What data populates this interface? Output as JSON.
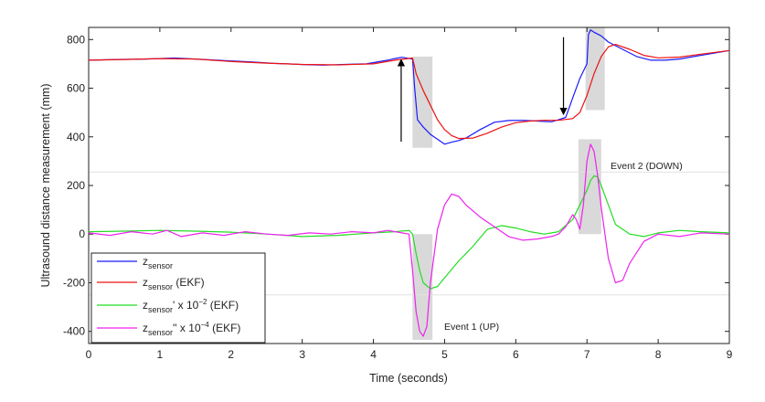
{
  "chart_data": {
    "type": "line",
    "xlabel": "Time (seconds)",
    "ylabel": "Ultrasound distance measurement (mm)",
    "xlim": [
      0,
      9
    ],
    "ylim": [
      -450,
      850
    ],
    "x_ticks": [
      "0",
      "1",
      "2",
      "3",
      "4",
      "5",
      "6",
      "7",
      "8",
      "9"
    ],
    "y_ticks": [
      "-400",
      "-200",
      "0",
      "200",
      "400",
      "600",
      "800"
    ],
    "grid": false,
    "legend_position": "bottom-left",
    "legend": [
      {
        "main": "z",
        "sub": "sensor",
        "tail": "",
        "sup": "",
        "after": ""
      },
      {
        "main": "z",
        "sub": "sensor",
        "tail": " (EKF)",
        "sup": "",
        "after": ""
      },
      {
        "main": "z",
        "sub": "sensor",
        "tail": "' x 10",
        "sup": "−2",
        "after": " (EKF)"
      },
      {
        "main": "z",
        "sub": "sensor",
        "tail": "'' x 10",
        "sup": "−4",
        "after": " (EKF)"
      }
    ],
    "series": [
      {
        "color": "#1a1aff",
        "x": [
          0,
          0.4,
          0.8,
          1.0,
          1.2,
          1.5,
          1.8,
          2.0,
          2.3,
          2.6,
          2.8,
          3.0,
          3.3,
          3.6,
          3.9,
          4.2,
          4.3,
          4.4,
          4.55,
          4.58,
          4.62,
          4.7,
          4.8,
          4.9,
          5.0,
          5.1,
          5.2,
          5.3,
          5.5,
          5.7,
          5.9,
          6.1,
          6.3,
          6.5,
          6.6,
          6.7,
          6.75,
          6.8,
          6.9,
          7.0,
          7.02,
          7.05,
          7.1,
          7.2,
          7.3,
          7.5,
          7.7,
          7.9,
          8.1,
          8.3,
          8.5,
          8.7,
          9.0
        ],
        "y": [
          715,
          718,
          720,
          722,
          724,
          720,
          715,
          712,
          708,
          702,
          700,
          697,
          695,
          698,
          700,
          715,
          722,
          727,
          720,
          600,
          470,
          440,
          410,
          390,
          370,
          378,
          385,
          395,
          430,
          460,
          467,
          468,
          465,
          462,
          470,
          480,
          520,
          560,
          640,
          700,
          820,
          840,
          830,
          815,
          790,
          760,
          730,
          715,
          715,
          720,
          730,
          740,
          755
        ]
      },
      {
        "color": "#ee1111",
        "x": [
          0,
          0.5,
          1.0,
          1.5,
          2.0,
          2.5,
          3.0,
          3.5,
          4.0,
          4.3,
          4.55,
          4.6,
          4.7,
          4.8,
          4.9,
          5.0,
          5.1,
          5.2,
          5.4,
          5.6,
          5.8,
          6.0,
          6.2,
          6.4,
          6.6,
          6.8,
          6.9,
          7.0,
          7.1,
          7.2,
          7.3,
          7.4,
          7.6,
          7.8,
          8.0,
          8.3,
          8.6,
          9.0
        ],
        "y": [
          715,
          718,
          722,
          720,
          710,
          703,
          698,
          696,
          700,
          715,
          724,
          660,
          590,
          530,
          470,
          430,
          405,
          393,
          395,
          415,
          440,
          458,
          465,
          468,
          468,
          475,
          500,
          570,
          660,
          730,
          770,
          780,
          760,
          735,
          725,
          728,
          740,
          755
        ]
      },
      {
        "color": "#22dd22",
        "x": [
          0,
          0.5,
          1.0,
          1.5,
          2.0,
          2.5,
          3.0,
          3.5,
          4.0,
          4.3,
          4.5,
          4.55,
          4.6,
          4.65,
          4.7,
          4.8,
          4.9,
          5.0,
          5.2,
          5.4,
          5.6,
          5.8,
          6.0,
          6.2,
          6.4,
          6.6,
          6.8,
          6.9,
          7.0,
          7.05,
          7.1,
          7.15,
          7.2,
          7.3,
          7.4,
          7.6,
          7.8,
          8.0,
          8.3,
          8.6,
          9.0
        ],
        "y": [
          10,
          12,
          15,
          12,
          8,
          0,
          -10,
          -5,
          5,
          10,
          15,
          0,
          -80,
          -150,
          -200,
          -225,
          -215,
          -180,
          -110,
          -50,
          20,
          35,
          25,
          10,
          0,
          10,
          60,
          120,
          180,
          220,
          240,
          235,
          200,
          120,
          40,
          0,
          -10,
          5,
          15,
          10,
          5
        ]
      },
      {
        "color": "#ee22ee",
        "x": [
          0,
          0.3,
          0.6,
          0.9,
          1.1,
          1.3,
          1.6,
          1.9,
          2.2,
          2.5,
          2.8,
          3.1,
          3.4,
          3.7,
          4.0,
          4.2,
          4.4,
          4.5,
          4.55,
          4.6,
          4.65,
          4.7,
          4.75,
          4.8,
          4.9,
          5.0,
          5.1,
          5.2,
          5.3,
          5.5,
          5.7,
          5.9,
          6.1,
          6.3,
          6.5,
          6.6,
          6.7,
          6.8,
          6.85,
          6.9,
          6.95,
          7.0,
          7.05,
          7.1,
          7.15,
          7.2,
          7.3,
          7.4,
          7.5,
          7.6,
          7.8,
          8.0,
          8.3,
          8.6,
          9.0
        ],
        "y": [
          5,
          -5,
          10,
          0,
          15,
          -10,
          5,
          -5,
          10,
          0,
          -5,
          5,
          0,
          10,
          5,
          15,
          5,
          0,
          -150,
          -320,
          -400,
          -420,
          -380,
          -200,
          20,
          120,
          165,
          155,
          120,
          70,
          30,
          -10,
          -25,
          -20,
          -10,
          0,
          30,
          80,
          60,
          20,
          120,
          300,
          370,
          340,
          240,
          110,
          -100,
          -200,
          -190,
          -120,
          -30,
          0,
          -10,
          5,
          0
        ]
      }
    ],
    "annotations": [
      "Event 1 (UP)",
      "Event 2 (DOWN)"
    ]
  }
}
